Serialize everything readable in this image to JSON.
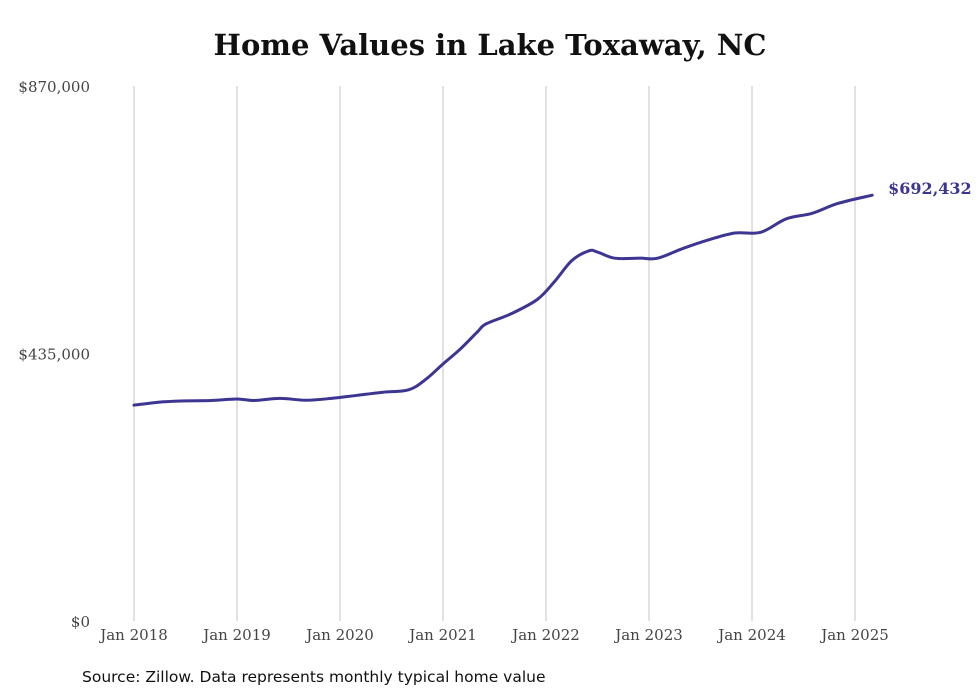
{
  "chart_data": {
    "type": "line",
    "title": "Home Values in Lake Toxaway, NC",
    "xlabel": "",
    "ylabel": "",
    "ylim": [
      0,
      870000
    ],
    "y_ticks": [
      0,
      435000,
      870000
    ],
    "y_tick_labels": [
      "$0",
      "$435,000",
      "$870,000"
    ],
    "x_ticks": [
      "2018-01",
      "2019-01",
      "2020-01",
      "2021-01",
      "2022-01",
      "2023-01",
      "2024-01",
      "2025-01"
    ],
    "x_tick_labels": [
      "Jan 2018",
      "Jan 2019",
      "Jan 2020",
      "Jan 2021",
      "Jan 2022",
      "Jan 2023",
      "Jan 2024",
      "Jan 2025"
    ],
    "grid": "vertical",
    "line_color": "#3c3592",
    "end_label": "$692,432",
    "series": [
      {
        "name": "",
        "points": [
          [
            "2018-01",
            351000
          ],
          [
            "2018-04",
            356000
          ],
          [
            "2018-07",
            358000
          ],
          [
            "2018-10",
            358500
          ],
          [
            "2019-01",
            361000
          ],
          [
            "2019-03",
            358500
          ],
          [
            "2019-06",
            362000
          ],
          [
            "2019-09",
            359000
          ],
          [
            "2019-12",
            362000
          ],
          [
            "2020-03",
            367000
          ],
          [
            "2020-06",
            372000
          ],
          [
            "2020-09",
            376000
          ],
          [
            "2020-11",
            393000
          ],
          [
            "2021-01",
            418000
          ],
          [
            "2021-03",
            442000
          ],
          [
            "2021-05",
            470000
          ],
          [
            "2021-06",
            483000
          ],
          [
            "2021-09",
            500000
          ],
          [
            "2021-12",
            523000
          ],
          [
            "2022-02",
            552000
          ],
          [
            "2022-04",
            586000
          ],
          [
            "2022-06",
            602000
          ],
          [
            "2022-07",
            600000
          ],
          [
            "2022-09",
            590000
          ],
          [
            "2022-12",
            590000
          ],
          [
            "2023-02",
            590000
          ],
          [
            "2023-05",
            606000
          ],
          [
            "2023-08",
            620000
          ],
          [
            "2023-11",
            631000
          ],
          [
            "2024-02",
            632000
          ],
          [
            "2024-05",
            654000
          ],
          [
            "2024-08",
            663000
          ],
          [
            "2024-11",
            679000
          ],
          [
            "2025-03",
            692432
          ]
        ]
      }
    ]
  },
  "source_note": "Source: Zillow. Data represents monthly typical home value"
}
